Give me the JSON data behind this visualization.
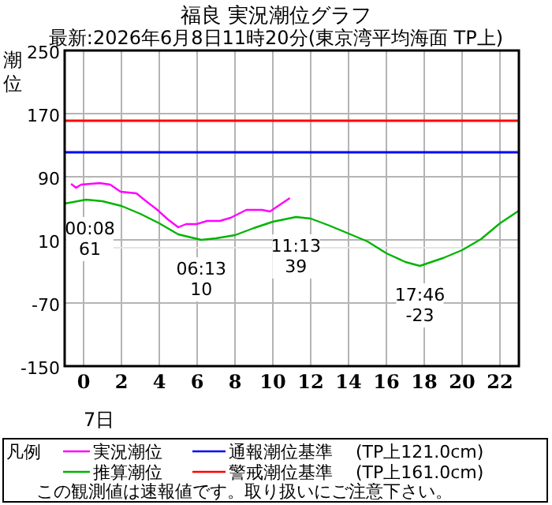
{
  "chart_data": {
    "type": "line",
    "title": "福良 実況潮位グラフ",
    "subtitle": "最新:2026年6月8日11時20分(東京湾平均海面 TP上)",
    "ylabel": "潮位",
    "legend_title": "凡例",
    "xlim": [
      -1,
      23
    ],
    "xticks": [
      0,
      2,
      4,
      6,
      8,
      10,
      12,
      14,
      16,
      18,
      20,
      22
    ],
    "ylim": [
      -150,
      250
    ],
    "yticks": [
      250,
      170,
      90,
      10,
      -70,
      -150
    ],
    "grid": true,
    "legend": "bottom",
    "line_style": "solid",
    "marker": "none",
    "series": [
      {
        "name": "実況潮位",
        "color": "#ff00ff",
        "x": [
          -0.66,
          -0.4,
          -0.13,
          0.86,
          1.41,
          1.96,
          2.79,
          3.2,
          3.9,
          4.45,
          5.0,
          5.42,
          5.97,
          6.53,
          7.2,
          7.77,
          8.6,
          9.43,
          9.85,
          10.4,
          10.9
        ],
        "values": [
          81,
          76,
          80,
          82,
          80,
          71,
          69,
          61,
          48,
          36,
          26,
          30,
          30,
          34,
          34,
          38,
          48,
          48,
          46,
          55,
          63
        ]
      },
      {
        "name": "推算潮位",
        "color": "#00b400",
        "x": [
          -1,
          0.13,
          1,
          2,
          3,
          4,
          5,
          6.22,
          7,
          8,
          9,
          10,
          11.22,
          12,
          13,
          14,
          15,
          16,
          17,
          17.77,
          19,
          20,
          21,
          22,
          23
        ],
        "values": [
          56,
          61,
          59,
          53,
          43,
          31,
          17,
          10,
          12,
          16,
          25,
          33,
          39,
          37,
          28,
          18,
          8,
          -7,
          -18,
          -23,
          -13,
          -3,
          11,
          31,
          47
        ]
      }
    ],
    "ref_lines": [
      {
        "axis": "y",
        "value": 121,
        "label": "通報潮位基準　 (TP上121.0cm)",
        "color": "#0000ff"
      },
      {
        "axis": "y",
        "value": 161,
        "label": "警戒潮位基準　 (TP上161.0cm)",
        "color": "#ff0000"
      },
      {
        "axis": "y",
        "value": 0,
        "color": "#e4e4e4"
      }
    ],
    "annotations": [
      {
        "text": "00:08\n61",
        "x": 0.13,
        "y": 61
      },
      {
        "text": "06:13\n10",
        "x": 6.22,
        "y": 10
      },
      {
        "text": "11:13\n39",
        "x": 11.22,
        "y": 39
      },
      {
        "text": "17:46\n-23",
        "x": 17.77,
        "y": -23
      },
      "7日",
      "この観測値は速報値です。取り扱いにご注意下さい。"
    ]
  }
}
